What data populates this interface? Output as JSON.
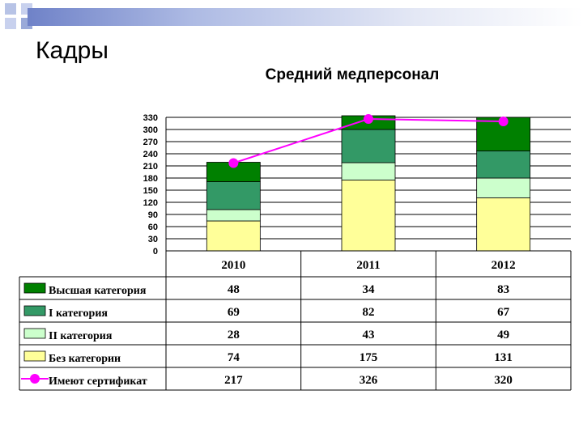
{
  "slide": {
    "title": "Кадры"
  },
  "chart_data": {
    "type": "bar",
    "stacked": true,
    "title": "Средний медперсонал",
    "categories": [
      "2010",
      "2011",
      "2012"
    ],
    "ylim": [
      0,
      330
    ],
    "yticks": [
      "0",
      "30",
      "60",
      "90",
      "120",
      "150",
      "180",
      "210",
      "240",
      "270",
      "300",
      "330"
    ],
    "grid": true,
    "legend_placement": "data-table",
    "series": [
      {
        "name": "Без категории",
        "type": "bar",
        "color": "#ffff99",
        "values": [
          74,
          175,
          131
        ]
      },
      {
        "name": "II категория",
        "type": "bar",
        "color": "#ccffcc",
        "values": [
          28,
          43,
          49
        ]
      },
      {
        "name": "I категория",
        "type": "bar",
        "color": "#339966",
        "values": [
          69,
          82,
          67
        ]
      },
      {
        "name": "Высшая категория",
        "type": "bar",
        "color": "#008000",
        "values": [
          48,
          34,
          83
        ]
      },
      {
        "name": "Имеют сертификат",
        "type": "line",
        "color": "#ff00ff",
        "values": [
          217,
          326,
          320
        ]
      }
    ],
    "table_rows": [
      {
        "name": "Высшая категория",
        "values": [
          "48",
          "34",
          "83"
        ],
        "swatch": "rect",
        "color": "#008000"
      },
      {
        "name": "I категория",
        "values": [
          "69",
          "82",
          "67"
        ],
        "swatch": "rect",
        "color": "#339966"
      },
      {
        "name": "II категория",
        "values": [
          "28",
          "43",
          "49"
        ],
        "swatch": "rect",
        "color": "#ccffcc"
      },
      {
        "name": "Без категории",
        "values": [
          "74",
          "175",
          "131"
        ],
        "swatch": "rect",
        "color": "#ffff99"
      },
      {
        "name": "Имеют сертификат",
        "values": [
          "217",
          "326",
          "320"
        ],
        "swatch": "line",
        "color": "#ff00ff"
      }
    ]
  }
}
